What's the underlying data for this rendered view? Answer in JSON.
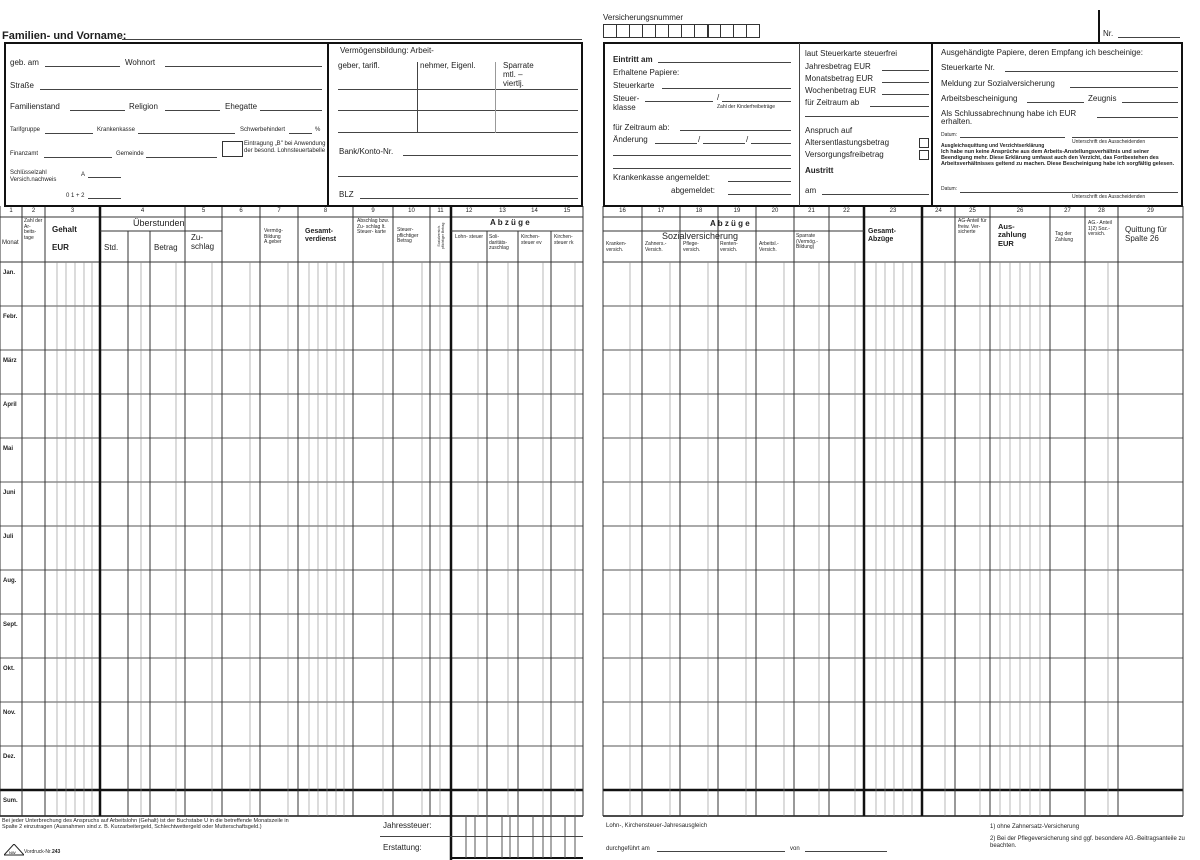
{
  "left_form": {
    "name_label": "Familien- und Vorname:",
    "birth_label": "geb. am",
    "residence_label": "Wohnort",
    "street_label": "Straße",
    "marital_label": "Familienstand",
    "religion_label": "Religion",
    "spouse_label": "Ehegatte",
    "tariff_label": "Tarifgruppe",
    "health_insurance_label": "Krankenkasse",
    "disability_label": "Schwerbehindert",
    "percent": "%",
    "tax_office_label": "Finanzamt",
    "municipality_label": "Gemeinde",
    "b_entry_note": "Eintragung „B\" bei Anwendung der besond. Lohnsteuertabelle",
    "key_label": "Schlüsselzahl Versich.nachweis",
    "key_a": "A",
    "key_012": "0 1 + 2"
  },
  "savings": {
    "title": "Vermögensbildung: Arbeit-",
    "col1": "geber, tarifl.",
    "col2": "nehmer, Eigenl.",
    "col3": "Sparrate mtl. – viertlj.",
    "bank_label": "Bank/Konto-Nr.",
    "blz_label": "BLZ"
  },
  "right_form": {
    "insurance_number_label": "Versicherungsnummer",
    "nr_label": "Nr.",
    "entry_label": "Eintritt am",
    "papers_label": "Erhaltene Papiere:",
    "tax_card_label": "Steuerkarte",
    "tax_class_label": "Steuer- klasse",
    "child_allowance_label": "Zahl der Kinderfreibeträge",
    "period_label": "für Zeitraum ab:",
    "change_label": "Änderung",
    "kk_registered_label": "Krankenkasse angemeldet:",
    "kk_deregistered_label": "abgemeldet:",
    "taxfree_title": "laut Steuerkarte steuerfrei",
    "annual_label": "Jahresbetrag  EUR",
    "monthly_label": "Monatsbetrag  EUR",
    "weekly_label": "Wochenbetrag EUR",
    "period2_label": "für Zeitraum ab",
    "claim_label": "Anspruch auf",
    "age_relief_label": "Altersentlastungsbetrag",
    "pension_allowance_label": "Versorgungsfreibetrag",
    "exit_label": "Austritt",
    "exit_date_label": "am",
    "handed_title": "Ausgehändigte Papiere, deren Empfang ich bescheinige:",
    "tax_card_nr_label": "Steuerkarte Nr.",
    "social_report_label": "Meldung zur Sozialversicherung",
    "work_certificate_label": "Arbeitsbescheinigung",
    "reference_label": "Zeugnis",
    "final_settlement_label": "Als Schlussabrechnung habe ich EUR",
    "received_label": "erhalten.",
    "date_label": "Datum:",
    "signature_label": "Unterschrift des Ausscheidenden",
    "waiver_title": "Ausgleichsquittung und Verzichtserklärung",
    "waiver_text": "Ich habe nun keine Ansprüche aus dem Arbeits-Anstellungsverhältnis und seiner Beendigung mehr. Diese Erklärung umfasst auch den Verzicht, das Fortbestehen des Arbeitsverhältnisses geltend zu machen. Diese Bescheinigung habe ich sorgfältig gelesen.",
    "date2_label": "Datum:",
    "signature2_label": "Unterschrift des Ausscheidenden"
  },
  "left_table": {
    "col_numbers": [
      "1",
      "2",
      "3",
      "4",
      "5",
      "6",
      "7",
      "8",
      "9",
      "10",
      "11",
      "12",
      "13",
      "14",
      "15"
    ],
    "month_header": "Monat",
    "workdays_header": "Zahl der Ar- beits- tage",
    "salary_header": "Gehalt",
    "salary_unit": "EUR",
    "overtime_header": "Überstunden",
    "hours_header": "Std.",
    "amount_header": "Betrag",
    "surcharge_header": "Zu- schlag",
    "capital_header": "Vermög- Bildung A.geber",
    "total_header": "Gesamt- verdienst",
    "deduction_header": "Abschlag bzw. Zu- schlag lt. Steuer- karte",
    "taxable_header": "Steuer- pflichtiger Betrag",
    "social_taxable_header": "Sozialversich. pflichtiger Betrag",
    "deductions_header": "A b z ü g e",
    "income_tax_header": "Lohn- steuer",
    "solidarity_header": "Soli- daritäts- zuschlag",
    "church_ev_header": "Kirchen- steuer ev",
    "church_rk_header": "Kirchen- steuer rk",
    "months": [
      "Jan.",
      "Febr.",
      "März",
      "April",
      "Mai",
      "Juni",
      "Juli",
      "Aug.",
      "Sept.",
      "Okt.",
      "Nov.",
      "Dez.",
      "Sum."
    ]
  },
  "right_table": {
    "col_numbers": [
      "16",
      "17",
      "18",
      "19",
      "20",
      "21",
      "22",
      "23",
      "24",
      "25",
      "26",
      "27",
      "28",
      "29"
    ],
    "deductions_header": "A b z ü g e",
    "social_header": "Sozialversicherung",
    "health_header": "Kranken- versich.",
    "dental_header": "Zahners.- Versich.",
    "care_header": "Pflege- versich.",
    "pension_header": "Renten- versich.",
    "unemployment_header": "Arbeitsl.- Versich.",
    "savings_header": "Sparrate (Vermög.- Bildung)",
    "total_deductions_header": "Gesamt- Abzüge",
    "employer_voluntary_header": "AG-Anteil für freiw. Ver- sicherte",
    "payout_header": "Aus- zahlung EUR",
    "payday_header": "Tag der Zahlung",
    "employer_social_header": "AG.- Anteil 1)2) Soz.- versich.",
    "receipt_header": "Quittung für Spalte 26"
  },
  "footer": {
    "interruption_note": "Bei jeder Unterbrechung des Anspruchs auf Arbeitslohn (Gehalt) ist der Buchstabe U in die betreffende Monatszeile in Spalte 2 einzutragen (Ausnahmen sind z. B. Kurzarbeitergeld, Schlechtwettergeld oder Mutterschaftsgeld.)",
    "annual_tax_label": "Jahressteuer:",
    "refund_label": "Erstattung:",
    "form_number_label": "Vordruck-Nr.",
    "form_number": "243",
    "logo_text": "NW",
    "annual_adjustment_label": "Lohn-, Kirchensteuer-Jahresausgleich",
    "performed_label": "durchgeführt am",
    "by_label": "von",
    "footnote1": "1)  ohne Zahnersatz-Versicherung",
    "footnote2": "2)  Bei der Pflegeversicherung sind ggf. besondere AG.-Beitragsanteile zu beachten."
  }
}
